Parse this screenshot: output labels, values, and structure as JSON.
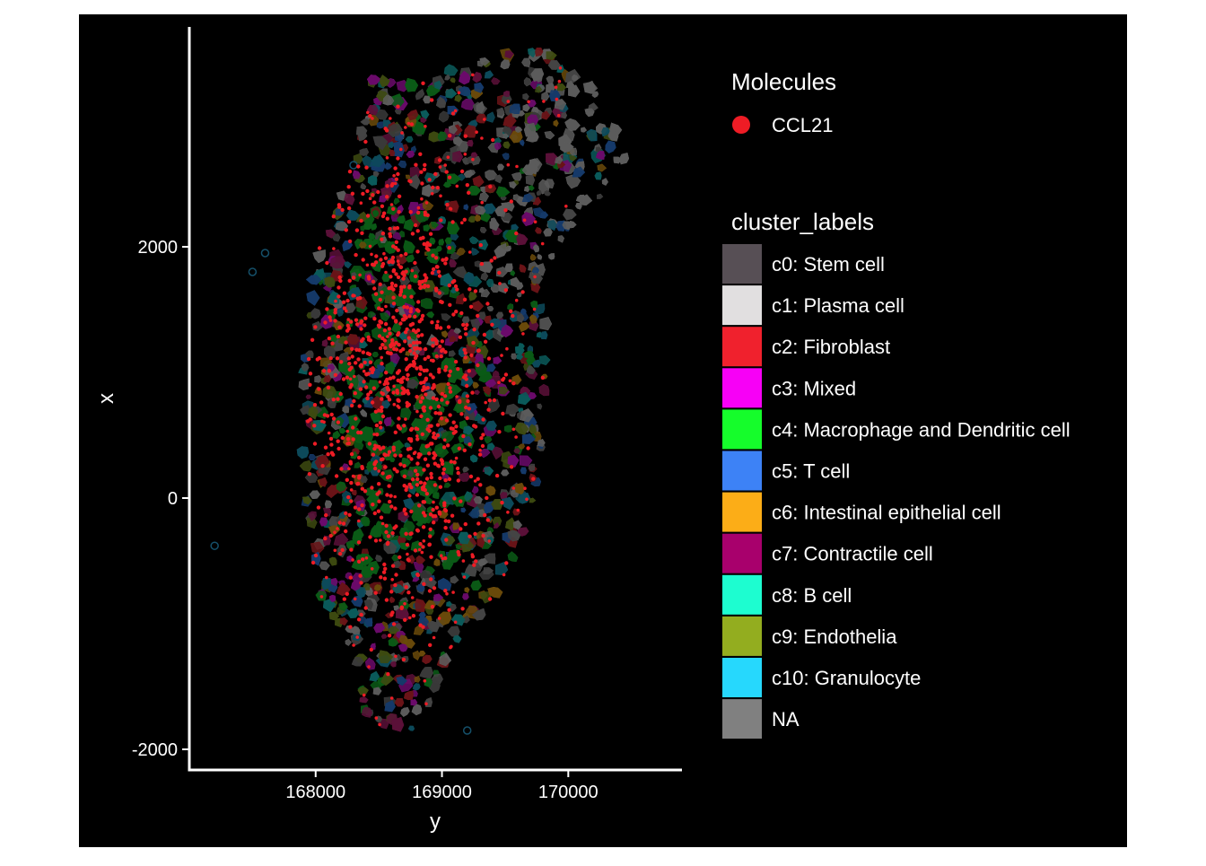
{
  "chart_data": {
    "type": "scatter",
    "title": "",
    "xlabel": "y",
    "ylabel": "x",
    "xlim": [
      167000,
      170900
    ],
    "ylim": [
      -2150,
      3750
    ],
    "x_ticks": [
      168000,
      169000,
      170000
    ],
    "y_ticks": [
      -2000,
      0,
      2000
    ],
    "x_tick_labels": [
      "168000",
      "169000",
      "170000"
    ],
    "y_tick_labels": [
      "-2000",
      "0",
      "2000"
    ],
    "background": "#000000",
    "legend_position": "right",
    "molecules_legend": {
      "title": "Molecules",
      "entries": [
        {
          "label": "CCL21",
          "color": "#ee1c25"
        }
      ]
    },
    "cluster_legend": {
      "title": "cluster_labels",
      "entries": [
        {
          "label": "c0: Stem cell",
          "color": "#574f55"
        },
        {
          "label": "c1: Plasma cell",
          "color": "#e1dfe0"
        },
        {
          "label": "c2: Fibroblast",
          "color": "#f0212d"
        },
        {
          "label": "c3: Mixed",
          "color": "#f700f6"
        },
        {
          "label": "c4: Macrophage and Dendritic cell",
          "color": "#15fd2b"
        },
        {
          "label": "c5: T cell",
          "color": "#3d82f6"
        },
        {
          "label": "c6: Intestinal epithelial cell",
          "color": "#fcad17"
        },
        {
          "label": "c7: Contractile cell",
          "color": "#a8006c"
        },
        {
          "label": "c8: B cell",
          "color": "#1dfdd0"
        },
        {
          "label": "c9: Endothelia",
          "color": "#93ad1f"
        },
        {
          "label": "c10: Granulocyte",
          "color": "#26d8fd"
        },
        {
          "label": "NA",
          "color": "#808080"
        }
      ]
    },
    "tissue_outline": [
      [
        168450,
        3350
      ],
      [
        168900,
        3300
      ],
      [
        169300,
        3550
      ],
      [
        169900,
        3600
      ],
      [
        170300,
        3150
      ],
      [
        170500,
        2700
      ],
      [
        170100,
        2200
      ],
      [
        169800,
        1800
      ],
      [
        169850,
        1200
      ],
      [
        169800,
        500
      ],
      [
        169700,
        -200
      ],
      [
        169400,
        -800
      ],
      [
        169100,
        -1200
      ],
      [
        168900,
        -1700
      ],
      [
        168700,
        -1900
      ],
      [
        168400,
        -1750
      ],
      [
        168300,
        -1300
      ],
      [
        168000,
        -700
      ],
      [
        167900,
        0
      ],
      [
        167900,
        800
      ],
      [
        167900,
        1600
      ],
      [
        168100,
        2200
      ],
      [
        168300,
        2700
      ]
    ],
    "dense_region_ccl21": {
      "label": "CCL21",
      "center": [
        168700,
        900
      ],
      "spread": [
        350,
        900
      ]
    }
  }
}
